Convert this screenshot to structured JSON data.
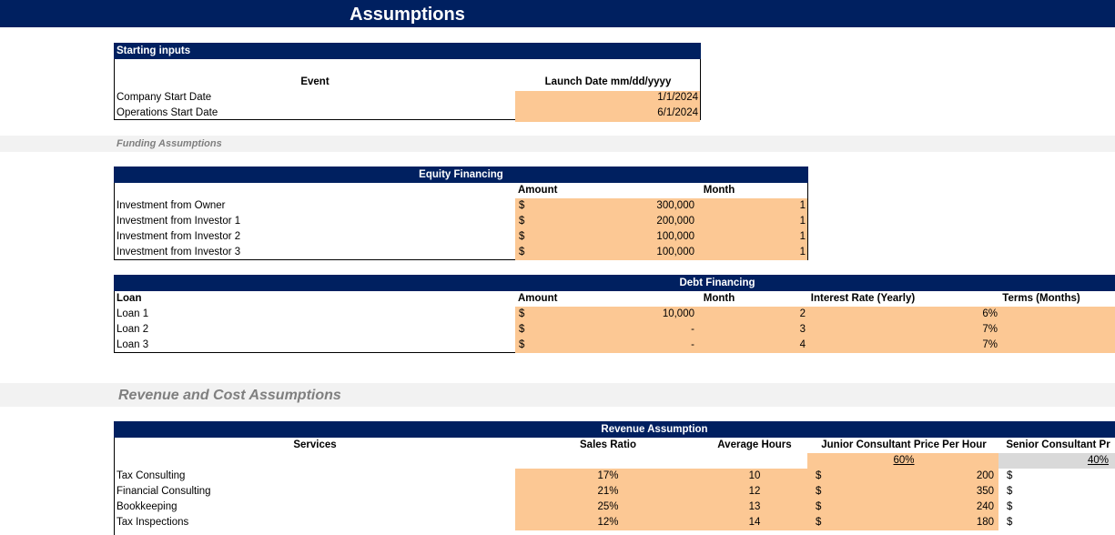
{
  "header": {
    "title": "Assumptions"
  },
  "starting_inputs": {
    "title": "Starting inputs",
    "columns": [
      "Event",
      "Launch Date mm/dd/yyyy"
    ],
    "rows": [
      [
        "Company Start Date",
        "1/1/2024"
      ],
      [
        "Operations Start Date",
        "6/1/2024"
      ]
    ]
  },
  "funding_label": "Funding Assumptions",
  "equity": {
    "title": "Equity Financing",
    "columns": [
      "Amount",
      "Month"
    ],
    "rows": [
      [
        "Investment from Owner",
        "$",
        "300,000",
        1
      ],
      [
        "Investment from Investor 1",
        "$",
        "200,000",
        1
      ],
      [
        "Investment from Investor 2",
        "$",
        "100,000",
        1
      ],
      [
        "Investment from Investor 3",
        "$",
        "100,000",
        1
      ]
    ]
  },
  "debt": {
    "title": "Debt Financing",
    "columns": [
      "Loan",
      "Amount",
      "Month",
      "Interest Rate (Yearly)",
      "Terms (Months)"
    ],
    "rows": [
      [
        "Loan 1",
        "$",
        "10,000",
        2,
        "6%"
      ],
      [
        "Loan 2",
        "$",
        "-",
        3,
        "7%"
      ],
      [
        "Loan 3",
        "$",
        "-",
        4,
        "7%"
      ]
    ]
  },
  "section_label": "Revenue and Cost Assumptions",
  "revenue": {
    "title": "Revenue Assumption",
    "columns": [
      "Services",
      "Sales Ratio",
      "Average Hours",
      "Junior Consultant Price Per Hour",
      "Senior Consultant Pr"
    ],
    "mix": [
      "60%",
      "40%"
    ],
    "rows": [
      [
        "Tax Consulting",
        "17%",
        10,
        "$",
        200,
        "$"
      ],
      [
        "Financial Consulting",
        "21%",
        12,
        "$",
        350,
        "$"
      ],
      [
        "Bookkeeping",
        "25%",
        13,
        "$",
        240,
        "$"
      ],
      [
        "Tax Inspections",
        "12%",
        14,
        "$",
        180,
        "$"
      ]
    ]
  }
}
